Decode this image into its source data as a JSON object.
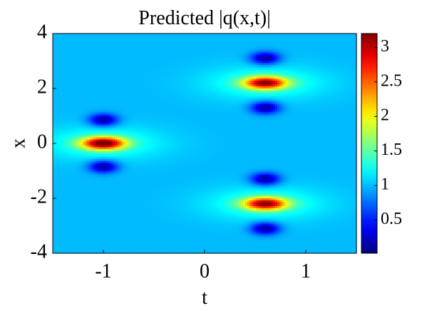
{
  "chart_data": {
    "type": "heatmap",
    "title": "Predicted |q(x,t)|",
    "xlabel": "t",
    "ylabel": "x",
    "xlim": [
      -1.5,
      1.5
    ],
    "ylim": [
      -4,
      4
    ],
    "x_ticks": [
      -1,
      0,
      1
    ],
    "x_tick_labels": [
      "-1",
      "0",
      "1"
    ],
    "y_ticks": [
      -4,
      -2,
      0,
      2,
      4
    ],
    "y_tick_labels": [
      "-4",
      "-2",
      "0",
      "2",
      "4"
    ],
    "colorbar": {
      "range": [
        0.02,
        3.2
      ],
      "ticks": [
        0.5,
        1,
        1.5,
        2,
        2.5,
        3
      ],
      "tick_labels": [
        "0.5",
        "1",
        "1.5",
        "2",
        "2.5",
        "3"
      ],
      "colormap": "jet"
    },
    "background_level": 1.0,
    "features": [
      {
        "kind": "peak",
        "t": -1.0,
        "x": 0.0,
        "value": 3.1
      },
      {
        "kind": "peak",
        "t": 0.6,
        "x": 2.2,
        "value": 2.9
      },
      {
        "kind": "peak",
        "t": 0.6,
        "x": -2.2,
        "value": 2.9
      },
      {
        "kind": "hole",
        "t": -1.0,
        "x": 0.85,
        "value": 0.1
      },
      {
        "kind": "hole",
        "t": -1.0,
        "x": -0.85,
        "value": 0.1
      },
      {
        "kind": "hole",
        "t": 0.6,
        "x": 3.1,
        "value": 0.1
      },
      {
        "kind": "hole",
        "t": 0.6,
        "x": 1.3,
        "value": 0.1
      },
      {
        "kind": "hole",
        "t": 0.6,
        "x": -1.3,
        "value": 0.1
      },
      {
        "kind": "hole",
        "t": 0.6,
        "x": -3.1,
        "value": 0.1
      }
    ]
  }
}
